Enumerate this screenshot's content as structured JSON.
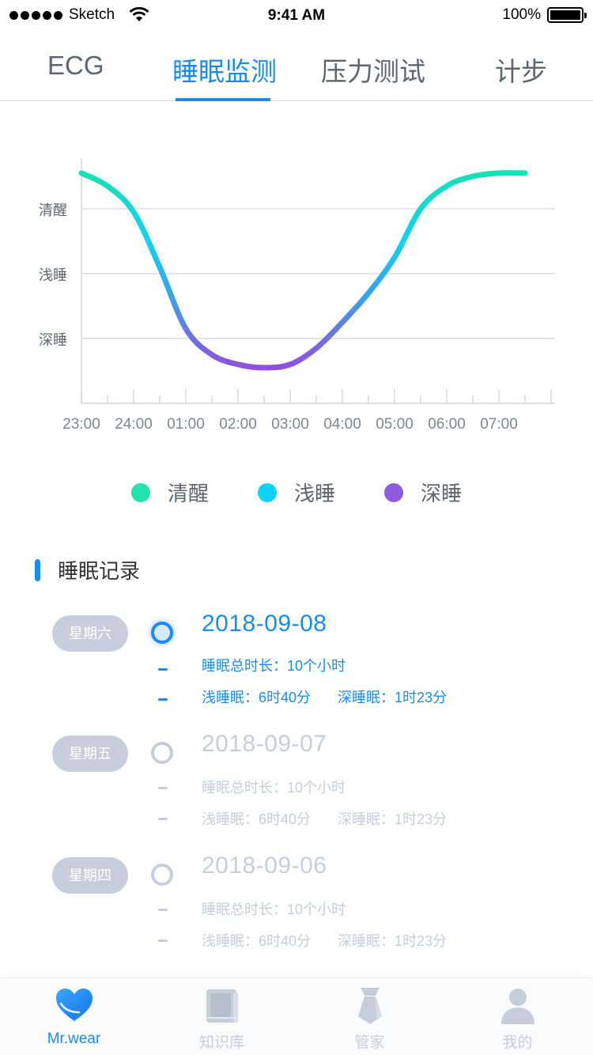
{
  "status_bar": {
    "carrier": "Sketch",
    "time": "9:41 AM",
    "battery": "100%"
  },
  "tabs": [
    {
      "label": "ECG",
      "active": false
    },
    {
      "label": "睡眠监测",
      "active": true
    },
    {
      "label": "压力测试",
      "active": false
    },
    {
      "label": "计步",
      "active": false
    }
  ],
  "chart_data": {
    "type": "line",
    "title": "",
    "xlabel": "",
    "ylabel": "",
    "x_ticks": [
      "23:00",
      "24:00",
      "01:00",
      "02:00",
      "03:00",
      "04:00",
      "05:00",
      "06:00",
      "07:00"
    ],
    "y_ticks": [
      "清醒",
      "浅睡",
      "深睡"
    ],
    "grid": true,
    "series": [
      {
        "x": [
          23.0,
          23.5,
          24.0,
          24.5,
          25.0,
          25.5,
          26.0,
          26.5,
          27.0,
          27.5,
          28.0,
          28.5,
          29.0,
          29.5,
          30.0,
          30.5,
          31.0,
          31.5
        ],
        "y": [
          3.55,
          3.35,
          2.95,
          2.1,
          1.15,
          0.75,
          0.6,
          0.55,
          0.6,
          0.85,
          1.25,
          1.7,
          2.25,
          3.0,
          3.35,
          3.5,
          3.55,
          3.55
        ]
      }
    ],
    "color_gradient": {
      "wake": "#1ee0b0",
      "light": "#12d6f0",
      "deep": "#8e5ae0"
    }
  },
  "legend": [
    {
      "label": "清醒",
      "color": "#22e3ae"
    },
    {
      "label": "浅睡",
      "color": "#0cd4f8"
    },
    {
      "label": "深睡",
      "color": "#8e5ae0"
    }
  ],
  "section": {
    "title": "睡眠记录"
  },
  "records": [
    {
      "day": "星期六",
      "date": "2018-09-08",
      "total": "睡眠总时长：10个小时",
      "light": "浅睡眠：6时40分",
      "deep": "深睡眠：1时23分",
      "active": true
    },
    {
      "day": "星期五",
      "date": "2018-09-07",
      "total": "睡眠总时长：10个小时",
      "light": "浅睡眠：6时40分",
      "deep": "深睡眠：1时23分",
      "active": false
    },
    {
      "day": "星期四",
      "date": "2018-09-06",
      "total": "睡眠总时长：10个小时",
      "light": "浅睡眠：6时40分",
      "deep": "深睡眠：1时23分",
      "active": false
    }
  ],
  "nav": [
    {
      "label": "Mr.wear",
      "icon": "heart-icon",
      "active": true
    },
    {
      "label": "知识库",
      "icon": "book-icon",
      "active": false
    },
    {
      "label": "管家",
      "icon": "tie-icon",
      "active": false
    },
    {
      "label": "我的",
      "icon": "person-icon",
      "active": false
    }
  ],
  "colors": {
    "accent": "#1a8cf0",
    "muted": "#c5ceda"
  }
}
